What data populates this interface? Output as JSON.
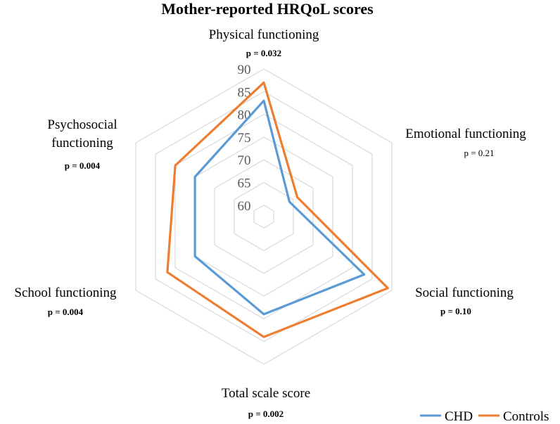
{
  "chart_data": {
    "type": "radar",
    "title": "Mother-reported HRQoL scores",
    "axes": [
      {
        "label_lines": [
          "Physical functioning"
        ],
        "p_value": "p = 0.032",
        "p_bold": true
      },
      {
        "label_lines": [
          "Emotional functioning"
        ],
        "p_value": "p = 0.21",
        "p_bold": false
      },
      {
        "label_lines": [
          "Social functioning"
        ],
        "p_value": "p = 0.10",
        "p_bold": true
      },
      {
        "label_lines": [
          "Total scale score"
        ],
        "p_value": "p = 0.002",
        "p_bold": true
      },
      {
        "label_lines": [
          "School functioning"
        ],
        "p_value": "p = 0.004",
        "p_bold": true
      },
      {
        "label_lines": [
          "Psychosocial",
          "functioning"
        ],
        "p_value": "p = 0.004",
        "p_bold": true
      }
    ],
    "rlim": [
      57.5,
      90
    ],
    "ticks": [
      60,
      65,
      70,
      75,
      80,
      85,
      90
    ],
    "series": [
      {
        "name": "CHD",
        "color": "#5b9bd5",
        "values": [
          83,
          64,
          83,
          79,
          75,
          75
        ]
      },
      {
        "name": "Controls",
        "color": "#ed7d31",
        "values": [
          87,
          66,
          89,
          84,
          82,
          80
        ]
      }
    ],
    "legend": "bottom-right"
  }
}
